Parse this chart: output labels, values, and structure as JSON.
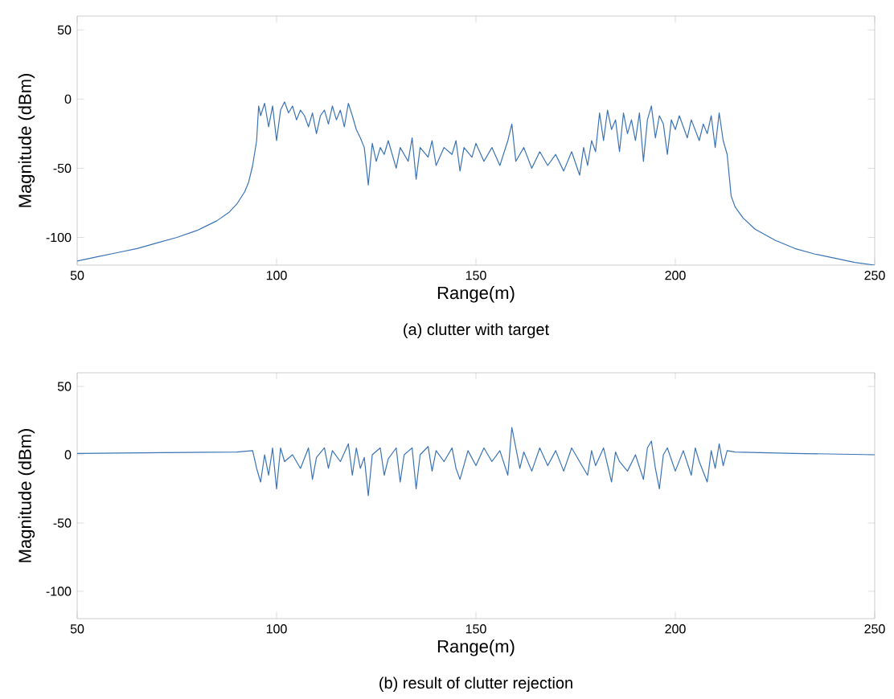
{
  "chart_data": [
    {
      "type": "line",
      "xlabel": "Range(m)",
      "ylabel": "Magnitude (dBm)",
      "annotations": [
        "(a) clutter with target"
      ],
      "xlim": [
        50,
        250
      ],
      "ylim": [
        -120,
        60
      ],
      "xticks": [
        50,
        100,
        150,
        200,
        250
      ],
      "yticks": [
        -100,
        -50,
        0,
        50
      ],
      "series": [
        {
          "color": "#3a73b6",
          "x": [
            50,
            55,
            60,
            65,
            70,
            75,
            80,
            85,
            88,
            90,
            92,
            93,
            94,
            95,
            95.5,
            96,
            97,
            98,
            99,
            100,
            101,
            102,
            103,
            104,
            105,
            106,
            107,
            108,
            109,
            110,
            111,
            112,
            113,
            114,
            115,
            116,
            117,
            118,
            119,
            120,
            121,
            122,
            123,
            124,
            125,
            126,
            127,
            128,
            130,
            131,
            133,
            134,
            135,
            136,
            138,
            139,
            140,
            142,
            144,
            145,
            146,
            147,
            149,
            150,
            152,
            154,
            156,
            158,
            159,
            160,
            162,
            164,
            166,
            168,
            170,
            172,
            174,
            176,
            177,
            178,
            179,
            180,
            181,
            182,
            183,
            184,
            185,
            186,
            187,
            188,
            189,
            190,
            191,
            192,
            193,
            194,
            195,
            196,
            197,
            198,
            199,
            200,
            201,
            203,
            204,
            206,
            207,
            208,
            209,
            210,
            211,
            212,
            213,
            214,
            215,
            217,
            220,
            225,
            230,
            235,
            240,
            245,
            250
          ],
          "values": [
            -117,
            -114,
            -111,
            -108,
            -104,
            -100,
            -95,
            -88,
            -82,
            -76,
            -67,
            -60,
            -48,
            -30,
            -5,
            -12,
            -3,
            -20,
            -5,
            -30,
            -8,
            -2,
            -10,
            -5,
            -15,
            -8,
            -12,
            -20,
            -10,
            -25,
            -12,
            -8,
            -18,
            -5,
            -15,
            -8,
            -20,
            -3,
            -12,
            -22,
            -28,
            -35,
            -62,
            -32,
            -45,
            -35,
            -40,
            -30,
            -50,
            -35,
            -45,
            -28,
            -58,
            -35,
            -42,
            -30,
            -48,
            -35,
            -40,
            -30,
            -52,
            -35,
            -42,
            -32,
            -45,
            -35,
            -48,
            -30,
            -18,
            -45,
            -35,
            -50,
            -38,
            -48,
            -40,
            -52,
            -38,
            -55,
            -35,
            -48,
            -30,
            -38,
            -10,
            -30,
            -8,
            -22,
            -15,
            -38,
            -10,
            -25,
            -15,
            -30,
            -10,
            -45,
            -15,
            -5,
            -28,
            -12,
            -18,
            -40,
            -15,
            -22,
            -12,
            -28,
            -15,
            -30,
            -18,
            -25,
            -12,
            -35,
            -10,
            -30,
            -40,
            -70,
            -78,
            -86,
            -94,
            -102,
            -108,
            -112,
            -115,
            -118,
            -120
          ]
        }
      ]
    },
    {
      "type": "line",
      "xlabel": "Range(m)",
      "ylabel": "Magnitude (dBm)",
      "annotations": [
        "(b) result of clutter rejection"
      ],
      "xlim": [
        50,
        250
      ],
      "ylim": [
        -120,
        60
      ],
      "xticks": [
        50,
        100,
        150,
        200,
        250
      ],
      "yticks": [
        -100,
        -50,
        0,
        50
      ],
      "series": [
        {
          "color": "#3a73b6",
          "x": [
            50,
            90,
            94,
            95,
            96,
            97,
            98,
            99,
            100,
            101,
            102,
            104,
            106,
            108,
            109,
            110,
            112,
            113,
            114,
            116,
            118,
            119,
            120,
            121,
            122,
            123,
            124,
            126,
            127,
            128,
            130,
            131,
            132,
            134,
            135,
            136,
            138,
            139,
            140,
            142,
            144,
            145,
            146,
            148,
            150,
            152,
            154,
            156,
            158,
            159,
            160,
            161,
            162,
            164,
            166,
            168,
            170,
            172,
            174,
            176,
            178,
            179,
            180,
            182,
            184,
            185,
            186,
            188,
            190,
            192,
            193,
            194,
            195,
            196,
            197,
            198,
            200,
            202,
            204,
            205,
            206,
            208,
            209,
            210,
            211,
            212,
            213,
            215,
            230,
            250
          ],
          "values": [
            1,
            2,
            3,
            -10,
            -20,
            0,
            -15,
            5,
            -25,
            5,
            -5,
            0,
            -10,
            5,
            -18,
            -2,
            5,
            -10,
            3,
            -5,
            8,
            -15,
            5,
            -10,
            -2,
            -30,
            0,
            5,
            -15,
            -3,
            5,
            -20,
            0,
            5,
            -25,
            0,
            6,
            -12,
            3,
            -5,
            5,
            -10,
            -18,
            3,
            -8,
            5,
            -5,
            3,
            -15,
            20,
            5,
            -10,
            2,
            -12,
            5,
            -8,
            3,
            -12,
            5,
            -5,
            -15,
            3,
            -8,
            5,
            -20,
            2,
            -5,
            -12,
            0,
            -18,
            5,
            10,
            -10,
            -25,
            0,
            5,
            -12,
            3,
            -15,
            5,
            -5,
            -20,
            3,
            -10,
            8,
            -8,
            3,
            2,
            1,
            0
          ]
        }
      ]
    }
  ]
}
